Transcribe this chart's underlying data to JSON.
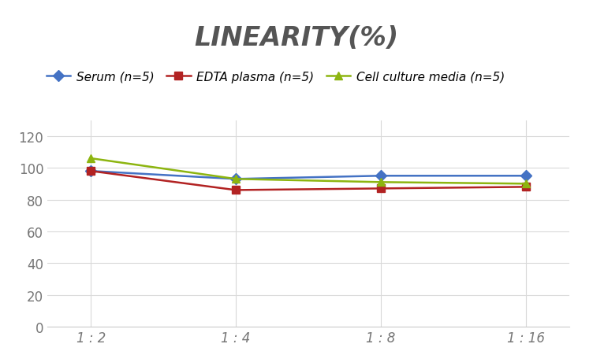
{
  "title": "LINEARITY(%)",
  "x_labels": [
    "1 : 2",
    "1 : 4",
    "1 : 8",
    "1 : 16"
  ],
  "x_positions": [
    0,
    1,
    2,
    3
  ],
  "series": [
    {
      "label": "Serum (n=5)",
      "color": "#4472C4",
      "marker": "D",
      "values": [
        98,
        93,
        95,
        95
      ]
    },
    {
      "label": "EDTA plasma (n=5)",
      "color": "#B22222",
      "marker": "s",
      "values": [
        98,
        86,
        87,
        88
      ]
    },
    {
      "label": "Cell culture media (n=5)",
      "color": "#8DB510",
      "marker": "^",
      "values": [
        106,
        93,
        91,
        90
      ]
    }
  ],
  "ylim": [
    0,
    130
  ],
  "yticks": [
    0,
    20,
    40,
    60,
    80,
    100,
    120
  ],
  "background_color": "#ffffff",
  "title_fontsize": 24,
  "legend_fontsize": 11,
  "axis_tick_fontsize": 12,
  "grid_color": "#d9d9d9",
  "line_width": 1.8,
  "marker_size": 7,
  "title_color": "#555555"
}
